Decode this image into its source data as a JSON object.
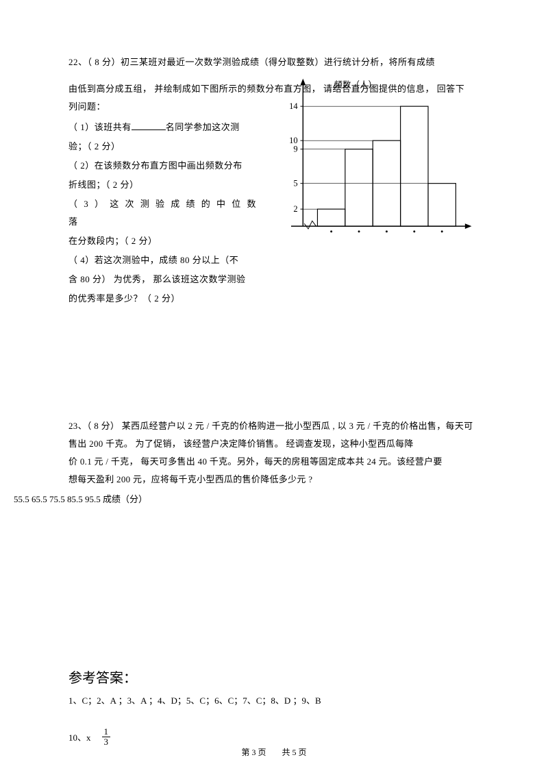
{
  "q22": {
    "title": "22、（ 8 分）初三某班对最近一次数学测验成绩（得分取整数）进行统计分析，将所有成绩",
    "intro": "由低到高分成五组， 并绘制成如下图所示的频数分布直方图， 请结合直方图提供的信息， 回答下列问题：",
    "p1a": "（ 1）该班共有",
    "p1b": "名同学参加这次测",
    "p1c": "验；（ 2 分）",
    "p2a": "（ 2）在该频数分布直方图中画出频数分布",
    "p2b": "折线图；（ 2 分）",
    "p3a": "（ 3 ） 这 次 测 验 成 绩 的 中 位 数 落",
    "p3b": "在分数段内；（ 2 分）",
    "p4a": "（ 4）若这次测验中，成绩     80 分以上（不",
    "p4b": "含 80 分） 为优秀，  那么该班这次数学测验",
    "p4c": "的优秀率是多少？（  2 分）",
    "axis_labels": "55.5  65.5  75.5  85.5  95.5  成绩（分）"
  },
  "chart": {
    "ylabel": "频数（人）",
    "yticks": [
      2,
      5,
      9,
      10,
      14
    ],
    "bars": [
      2,
      9,
      10,
      14,
      5
    ],
    "y_max": 15,
    "axis_color": "#000000",
    "bar_stroke": "#000000",
    "tick_len": 4
  },
  "q23": {
    "l1": "23、（ 8 分）  某西瓜经营户以 2 元 / 千克的价格购进一批小型西瓜 , 以 3 元 / 千克的价格出售，每天可",
    "l2": "售出 200 千克。 为了促销，  该经营户决定降价销售。 经调查发现，这种小型西瓜每降",
    "l3": "价 0.1 元 / 千克，  每天可多售出    40 千克。另外，每天的房租等固定成本共       24 元。该经营户要",
    "l4": "想每天盈利   200 元，应将每千克小型西瓜的售价降低多少元 ?"
  },
  "answers": {
    "title": "参考答案：",
    "line1": "1、C；2、A ；3、A ；4、D；5、C；6、C；7、C；8、D ；9、B",
    "a10_prefix": "10、x",
    "frac_num": "1",
    "frac_den": "3"
  },
  "footer": {
    "page": "第 3 页",
    "total": "共 5 页"
  }
}
